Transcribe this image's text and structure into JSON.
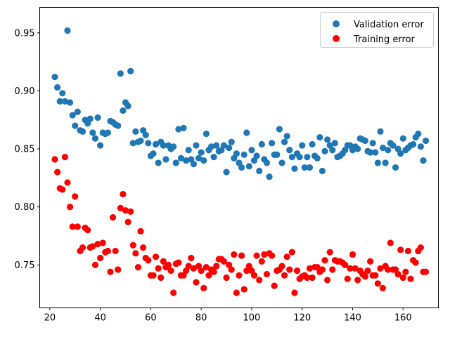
{
  "chart_data": {
    "type": "scatter",
    "title": "",
    "xlabel": "",
    "ylabel": "",
    "xlim": [
      16,
      174
    ],
    "ylim": [
      0.713,
      0.972
    ],
    "xticks": [
      20,
      40,
      60,
      80,
      100,
      120,
      140,
      160
    ],
    "yticks": [
      0.75,
      0.8,
      0.85,
      0.9,
      0.95
    ],
    "xtick_labels": [
      "20",
      "40",
      "60",
      "80",
      "100",
      "120",
      "140",
      "160"
    ],
    "ytick_labels": [
      "0.75",
      "0.80",
      "0.85",
      "0.90",
      "0.95"
    ],
    "grid": false,
    "legend_position": "top-right",
    "series": [
      {
        "name": "Validation error",
        "color": "#1f77b4",
        "x": [
          22,
          23,
          24,
          25,
          26,
          27,
          28,
          29,
          30,
          31,
          32,
          33,
          34,
          35,
          36,
          37,
          38,
          39,
          40,
          41,
          42,
          43,
          44,
          45,
          46,
          47,
          48,
          49,
          50,
          51,
          52,
          53,
          54,
          55,
          56,
          57,
          58,
          59,
          60,
          61,
          62,
          63,
          64,
          65,
          66,
          67,
          68,
          69,
          70,
          71,
          72,
          73,
          74,
          75,
          76,
          77,
          78,
          79,
          80,
          81,
          82,
          83,
          84,
          85,
          86,
          87,
          88,
          89,
          90,
          91,
          92,
          93,
          94,
          95,
          96,
          97,
          98,
          99,
          100,
          101,
          102,
          103,
          104,
          105,
          106,
          107,
          108,
          109,
          110,
          111,
          112,
          113,
          114,
          115,
          116,
          117,
          118,
          119,
          120,
          121,
          122,
          123,
          124,
          125,
          126,
          127,
          128,
          129,
          130,
          131,
          132,
          133,
          134,
          135,
          136,
          137,
          138,
          139,
          140,
          141,
          142,
          143,
          144,
          145,
          146,
          147,
          148,
          149,
          150,
          151,
          152,
          153,
          154,
          155,
          156,
          157,
          158,
          159,
          160,
          161,
          162,
          163,
          164,
          165,
          166,
          167,
          168,
          169
        ],
        "y": [
          0.912,
          0.903,
          0.891,
          0.898,
          0.891,
          0.952,
          0.89,
          0.879,
          0.87,
          0.882,
          0.866,
          0.865,
          0.875,
          0.872,
          0.876,
          0.864,
          0.859,
          0.877,
          0.853,
          0.864,
          0.863,
          0.864,
          0.874,
          0.873,
          0.871,
          0.87,
          0.915,
          0.883,
          0.89,
          0.887,
          0.917,
          0.855,
          0.865,
          0.856,
          0.857,
          0.866,
          0.862,
          0.855,
          0.844,
          0.846,
          0.854,
          0.838,
          0.856,
          0.853,
          0.841,
          0.853,
          0.85,
          0.852,
          0.838,
          0.867,
          0.842,
          0.868,
          0.84,
          0.849,
          0.841,
          0.837,
          0.853,
          0.842,
          0.847,
          0.84,
          0.863,
          0.849,
          0.852,
          0.843,
          0.853,
          0.848,
          0.849,
          0.853,
          0.83,
          0.851,
          0.856,
          0.842,
          0.846,
          0.838,
          0.834,
          0.845,
          0.864,
          0.835,
          0.849,
          0.84,
          0.844,
          0.831,
          0.854,
          0.841,
          0.838,
          0.826,
          0.855,
          0.845,
          0.845,
          0.867,
          0.838,
          0.856,
          0.861,
          0.849,
          0.843,
          0.833,
          0.846,
          0.843,
          0.853,
          0.834,
          0.843,
          0.834,
          0.854,
          0.844,
          0.842,
          0.86,
          0.831,
          0.848,
          0.858,
          0.853,
          0.849,
          0.855,
          0.843,
          0.844,
          0.846,
          0.849,
          0.853,
          0.853,
          0.849,
          0.852,
          0.85,
          0.859,
          0.858,
          0.857,
          0.848,
          0.847,
          0.855,
          0.847,
          0.838,
          0.865,
          0.851,
          0.838,
          0.849,
          0.855,
          0.853,
          0.834,
          0.85,
          0.846,
          0.859,
          0.849,
          0.851,
          0.853,
          0.854,
          0.86,
          0.863,
          0.852,
          0.84,
          0.857
        ]
      },
      {
        "name": "Training error",
        "color": "#ff0000",
        "x": [
          22,
          23,
          24,
          25,
          26,
          27,
          28,
          29,
          30,
          31,
          32,
          33,
          34,
          35,
          36,
          37,
          38,
          39,
          40,
          41,
          42,
          43,
          44,
          45,
          46,
          47,
          48,
          49,
          50,
          51,
          52,
          53,
          54,
          55,
          56,
          57,
          58,
          59,
          60,
          61,
          62,
          63,
          64,
          65,
          66,
          67,
          68,
          69,
          70,
          71,
          72,
          73,
          74,
          75,
          76,
          77,
          78,
          79,
          80,
          81,
          82,
          83,
          84,
          85,
          86,
          87,
          88,
          89,
          90,
          91,
          92,
          93,
          94,
          95,
          96,
          97,
          98,
          99,
          100,
          101,
          102,
          103,
          104,
          105,
          106,
          107,
          108,
          109,
          110,
          111,
          112,
          113,
          114,
          115,
          116,
          117,
          118,
          119,
          120,
          121,
          122,
          123,
          124,
          125,
          126,
          127,
          128,
          129,
          130,
          131,
          132,
          133,
          134,
          135,
          136,
          137,
          138,
          139,
          140,
          141,
          142,
          143,
          144,
          145,
          146,
          147,
          148,
          149,
          150,
          151,
          152,
          153,
          154,
          155,
          156,
          157,
          158,
          159,
          160,
          161,
          162,
          163,
          164,
          165,
          166,
          167,
          168,
          169
        ],
        "y": [
          0.841,
          0.83,
          0.816,
          0.815,
          0.843,
          0.821,
          0.8,
          0.783,
          0.809,
          0.783,
          0.762,
          0.765,
          0.782,
          0.78,
          0.765,
          0.766,
          0.75,
          0.768,
          0.756,
          0.769,
          0.761,
          0.762,
          0.744,
          0.791,
          0.762,
          0.746,
          0.799,
          0.811,
          0.797,
          0.787,
          0.796,
          0.767,
          0.76,
          0.748,
          0.779,
          0.765,
          0.756,
          0.754,
          0.741,
          0.741,
          0.757,
          0.747,
          0.739,
          0.753,
          0.748,
          0.75,
          0.745,
          0.726,
          0.751,
          0.752,
          0.741,
          0.741,
          0.745,
          0.749,
          0.756,
          0.747,
          0.735,
          0.749,
          0.745,
          0.73,
          0.748,
          0.741,
          0.746,
          0.744,
          0.749,
          0.755,
          0.755,
          0.753,
          0.739,
          0.75,
          0.746,
          0.759,
          0.726,
          0.741,
          0.758,
          0.729,
          0.745,
          0.749,
          0.745,
          0.741,
          0.758,
          0.737,
          0.753,
          0.759,
          0.742,
          0.76,
          0.758,
          0.732,
          0.745,
          0.746,
          0.749,
          0.741,
          0.757,
          0.746,
          0.761,
          0.726,
          0.745,
          0.738,
          0.74,
          0.741,
          0.739,
          0.747,
          0.739,
          0.748,
          0.748,
          0.744,
          0.746,
          0.754,
          0.737,
          0.761,
          0.746,
          0.754,
          0.753,
          0.753,
          0.752,
          0.75,
          0.738,
          0.747,
          0.759,
          0.747,
          0.737,
          0.745,
          0.742,
          0.74,
          0.745,
          0.753,
          0.741,
          0.741,
          0.734,
          0.747,
          0.73,
          0.749,
          0.746,
          0.769,
          0.746,
          0.746,
          0.742,
          0.763,
          0.739,
          0.744,
          0.762,
          0.738,
          0.754,
          0.752,
          0.762,
          0.765,
          0.744,
          0.744
        ]
      }
    ]
  }
}
